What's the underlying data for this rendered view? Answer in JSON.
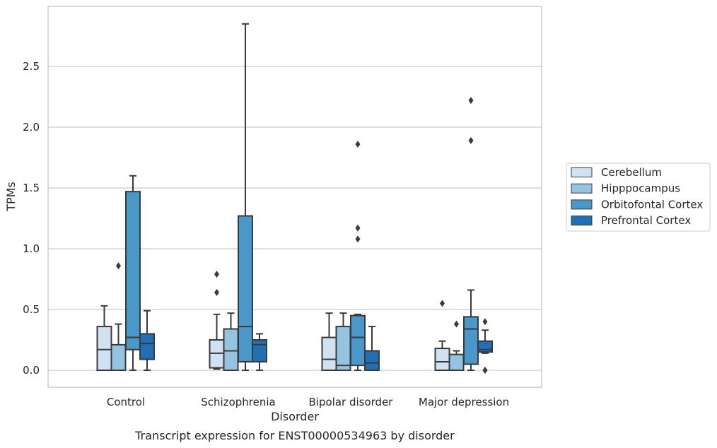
{
  "chart_data": {
    "type": "boxplot",
    "title": "Transcript expression for ENST00000534963 by disorder",
    "xlabel": "Disorder",
    "ylabel": "TPMs",
    "ylim": [
      -0.14,
      2.99
    ],
    "yticks": [
      0.0,
      0.5,
      1.0,
      1.5,
      2.0,
      2.5
    ],
    "ytick_labels": [
      "0.0",
      "0.5",
      "1.0",
      "1.5",
      "2.0",
      "2.5"
    ],
    "grid": "horizontal",
    "legend_position": "right",
    "categories": [
      "Control",
      "Schizophrenia",
      "Bipolar disorder",
      "Major depression"
    ],
    "series": [
      {
        "name": "Cerebellum",
        "color": "#d0e1f2",
        "boxes": [
          {
            "min": 0.0,
            "q1": 0.0,
            "median": 0.17,
            "q3": 0.36,
            "max": 0.53,
            "outliers": []
          },
          {
            "min": 0.01,
            "q1": 0.02,
            "median": 0.14,
            "q3": 0.25,
            "max": 0.46,
            "outliers": [
              0.64,
              0.79
            ]
          },
          {
            "min": 0.0,
            "q1": 0.0,
            "median": 0.09,
            "q3": 0.27,
            "max": 0.47,
            "outliers": []
          },
          {
            "min": 0.0,
            "q1": 0.0,
            "median": 0.07,
            "q3": 0.18,
            "max": 0.24,
            "outliers": [
              0.55
            ]
          }
        ]
      },
      {
        "name": "Hipppocampus",
        "color": "#94c4df",
        "boxes": [
          {
            "min": 0.0,
            "q1": 0.0,
            "median": 0.0,
            "q3": 0.21,
            "max": 0.38,
            "outliers": [
              0.86
            ]
          },
          {
            "min": 0.0,
            "q1": 0.0,
            "median": 0.16,
            "q3": 0.34,
            "max": 0.47,
            "outliers": []
          },
          {
            "min": 0.0,
            "q1": 0.0,
            "median": 0.04,
            "q3": 0.36,
            "max": 0.47,
            "outliers": []
          },
          {
            "min": 0.0,
            "q1": 0.0,
            "median": 0.0,
            "q3": 0.13,
            "max": 0.16,
            "outliers": [
              0.38
            ]
          }
        ]
      },
      {
        "name": "Orbitofontal Cortex",
        "color": "#4a98c9",
        "boxes": [
          {
            "min": 0.0,
            "q1": 0.17,
            "median": 0.27,
            "q3": 1.47,
            "max": 1.6,
            "outliers": []
          },
          {
            "min": 0.0,
            "q1": 0.07,
            "median": 0.36,
            "q3": 1.27,
            "max": 2.85,
            "outliers": []
          },
          {
            "min": 0.0,
            "q1": 0.04,
            "median": 0.27,
            "q3": 0.45,
            "max": 0.46,
            "outliers": [
              1.08,
              1.17,
              1.86
            ]
          },
          {
            "min": 0.0,
            "q1": 0.05,
            "median": 0.34,
            "q3": 0.44,
            "max": 0.66,
            "outliers": [
              1.89,
              2.22
            ]
          }
        ]
      },
      {
        "name": "Prefrontal Cortex",
        "color": "#2170b5",
        "boxes": [
          {
            "min": 0.0,
            "q1": 0.09,
            "median": 0.22,
            "q3": 0.3,
            "max": 0.49,
            "outliers": []
          },
          {
            "min": 0.0,
            "q1": 0.07,
            "median": 0.21,
            "q3": 0.25,
            "max": 0.3,
            "outliers": []
          },
          {
            "min": 0.0,
            "q1": 0.0,
            "median": 0.06,
            "q3": 0.16,
            "max": 0.36,
            "outliers": []
          },
          {
            "min": 0.14,
            "q1": 0.15,
            "median": 0.17,
            "q3": 0.24,
            "max": 0.33,
            "outliers": [
              0.0,
              0.0,
              0.4
            ]
          }
        ]
      }
    ]
  }
}
